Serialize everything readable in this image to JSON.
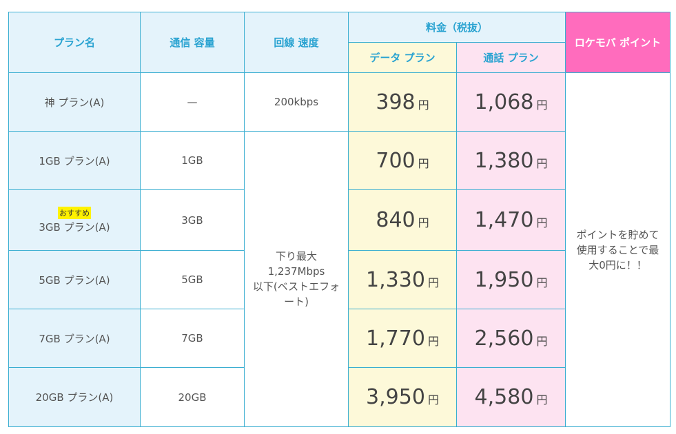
{
  "headers": {
    "plan_name": "プラン名",
    "capacity": "通信 容量",
    "speed": "回線 速度",
    "price_group": "料金（税抜）",
    "data_plan": "データ プラン",
    "voice_plan": "通話 プラン",
    "points": "ロケモバ ポイント"
  },
  "yen": "円",
  "rows": [
    {
      "plan": "神 プラン(A)",
      "capacity": "—",
      "data_price": "398",
      "voice_price": "1,068"
    },
    {
      "plan": "1GB プラン(A)",
      "capacity": "1GB",
      "data_price": "700",
      "voice_price": "1,380"
    },
    {
      "plan": "3GB プラン(A)",
      "badge": "おすすめ",
      "capacity": "3GB",
      "data_price": "840",
      "voice_price": "1,470"
    },
    {
      "plan": "5GB プラン(A)",
      "capacity": "5GB",
      "data_price": "1,330",
      "voice_price": "1,950"
    },
    {
      "plan": "7GB プラン(A)",
      "capacity": "7GB",
      "data_price": "1,770",
      "voice_price": "2,560"
    },
    {
      "plan": "20GB プラン(A)",
      "capacity": "20GB",
      "data_price": "3,950",
      "voice_price": "4,580"
    }
  ],
  "speed_values": {
    "kami": "200kbps",
    "others_lines": [
      "下り最大",
      "1,237Mbps",
      "以下(ベストエフォ",
      "ート)"
    ]
  },
  "points_text_lines": [
    "ポイントを貯めて",
    "使用することで最",
    "大0円に！！"
  ]
}
